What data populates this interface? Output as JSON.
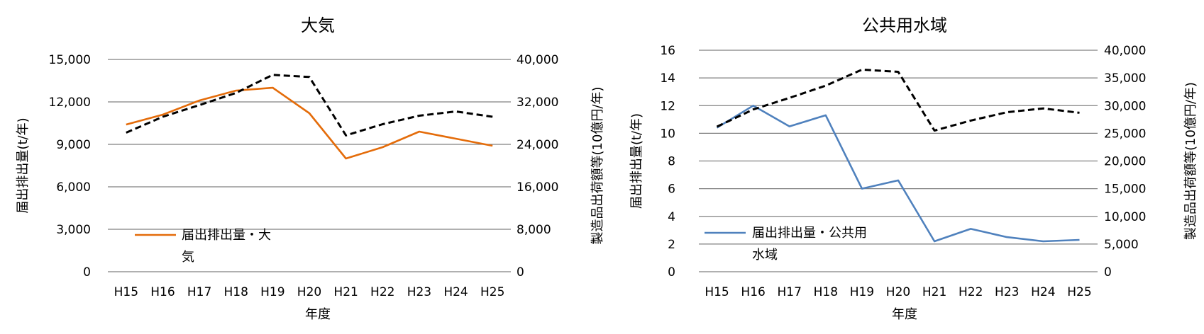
{
  "chart_data": [
    {
      "type": "line",
      "title": "大気",
      "xlabel": "年度",
      "ylabel_left": "届出排出量(t/年)",
      "ylabel_right": "製造品出荷額等(10億円/年)",
      "categories": [
        "H15",
        "H16",
        "H17",
        "H18",
        "H19",
        "H20",
        "H21",
        "H22",
        "H23",
        "H24",
        "H25"
      ],
      "ylim_left": [
        0,
        15000
      ],
      "yticks_left": [
        "0",
        "3,000",
        "6,000",
        "9,000",
        "12,000",
        "15,000"
      ],
      "ylim_right": [
        0,
        40000
      ],
      "yticks_right": [
        "0",
        "8,000",
        "16,000",
        "24,000",
        "32,000",
        "40,000"
      ],
      "grid": true,
      "legend_position": "lower-left",
      "series": [
        {
          "name": "届出排出量・大気",
          "axis": "left",
          "color": "#E46C0A",
          "style": "solid",
          "values": [
            10400,
            11100,
            12100,
            12800,
            13000,
            11200,
            8000,
            8800,
            9900,
            9400,
            8900
          ]
        },
        {
          "axis": "right",
          "color": "#000000",
          "style": "dashed",
          "values": [
            26200,
            29200,
            31400,
            33700,
            37100,
            36700,
            25700,
            27800,
            29400,
            30200,
            29200
          ]
        }
      ]
    },
    {
      "type": "line",
      "title": "公共用水域",
      "xlabel": "年度",
      "ylabel_left": "届出排出量(t/年)",
      "ylabel_right": "製造品出荷額等(10億円/年)",
      "categories": [
        "H15",
        "H16",
        "H17",
        "H18",
        "H19",
        "H20",
        "H21",
        "H22",
        "H23",
        "H24",
        "H25"
      ],
      "ylim_left": [
        0,
        16
      ],
      "yticks_left": [
        "0",
        "2",
        "4",
        "6",
        "8",
        "10",
        "12",
        "14",
        "16"
      ],
      "ylim_right": [
        0,
        40000
      ],
      "yticks_right": [
        "0",
        "5,000",
        "10,000",
        "15,000",
        "20,000",
        "25,000",
        "30,000",
        "35,000",
        "40,000"
      ],
      "grid": true,
      "legend_position": "lower-left",
      "series": [
        {
          "name": "届出排出量・公共用水域",
          "axis": "left",
          "color": "#4F81BD",
          "style": "solid",
          "values": [
            10.4,
            12.0,
            10.5,
            11.3,
            6.0,
            6.6,
            2.2,
            3.1,
            2.5,
            2.2,
            2.3
          ]
        },
        {
          "axis": "right",
          "color": "#000000",
          "style": "dashed",
          "values": [
            26200,
            29300,
            31400,
            33600,
            36500,
            36100,
            25500,
            27300,
            28800,
            29500,
            28700
          ]
        }
      ]
    }
  ]
}
